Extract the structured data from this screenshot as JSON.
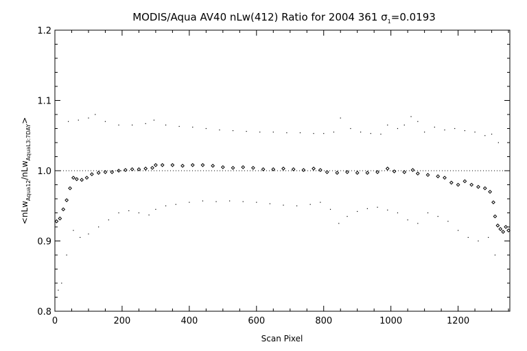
{
  "chart_data": {
    "type": "scatter",
    "title": "MODIS/Aqua AV40 nLw(412) Ratio for 2004 361 σ",
    "title_sub": "1",
    "title_tail": "=0.0193",
    "xlabel": "Scan Pixel",
    "ylabel": {
      "open": "<nLw",
      "sub1": "Aqua12",
      "mid": "/nLw",
      "sub2": "AquaL3:7DAY",
      "close": ">"
    },
    "xlim": [
      0,
      1354
    ],
    "ylim": [
      0.8,
      1.2
    ],
    "x_ticks": [
      "0",
      "200",
      "400",
      "600",
      "800",
      "1000",
      "1200"
    ],
    "y_ticks": [
      "0.8",
      "0.9",
      "1.0",
      "1.1",
      "1.2"
    ],
    "reference_line": {
      "y": 1.0,
      "style": "dotted"
    },
    "grid": false,
    "legend": "none",
    "series": [
      {
        "role": "mean",
        "marker": "diamond",
        "points": [
          [
            5,
            0.928
          ],
          [
            15,
            0.932
          ],
          [
            25,
            0.945
          ],
          [
            35,
            0.958
          ],
          [
            45,
            0.975
          ],
          [
            55,
            0.99
          ],
          [
            65,
            0.988
          ],
          [
            80,
            0.987
          ],
          [
            95,
            0.99
          ],
          [
            110,
            0.995
          ],
          [
            130,
            0.997
          ],
          [
            150,
            0.998
          ],
          [
            170,
            0.998
          ],
          [
            190,
            1.0
          ],
          [
            210,
            1.001
          ],
          [
            230,
            1.002
          ],
          [
            250,
            1.002
          ],
          [
            270,
            1.003
          ],
          [
            290,
            1.004
          ],
          [
            300,
            1.008
          ],
          [
            320,
            1.008
          ],
          [
            350,
            1.008
          ],
          [
            380,
            1.007
          ],
          [
            410,
            1.008
          ],
          [
            440,
            1.008
          ],
          [
            470,
            1.007
          ],
          [
            500,
            1.005
          ],
          [
            530,
            1.004
          ],
          [
            560,
            1.005
          ],
          [
            590,
            1.004
          ],
          [
            620,
            1.002
          ],
          [
            650,
            1.002
          ],
          [
            680,
            1.003
          ],
          [
            710,
            1.002
          ],
          [
            740,
            1.001
          ],
          [
            770,
            1.003
          ],
          [
            790,
            1.001
          ],
          [
            810,
            0.998
          ],
          [
            840,
            0.997
          ],
          [
            870,
            0.998
          ],
          [
            900,
            0.997
          ],
          [
            930,
            0.997
          ],
          [
            960,
            0.998
          ],
          [
            990,
            1.003
          ],
          [
            1010,
            0.999
          ],
          [
            1040,
            0.998
          ],
          [
            1065,
            1.001
          ],
          [
            1080,
            0.996
          ],
          [
            1110,
            0.994
          ],
          [
            1140,
            0.992
          ],
          [
            1160,
            0.99
          ],
          [
            1180,
            0.983
          ],
          [
            1200,
            0.98
          ],
          [
            1220,
            0.985
          ],
          [
            1240,
            0.98
          ],
          [
            1260,
            0.977
          ],
          [
            1280,
            0.975
          ],
          [
            1295,
            0.97
          ],
          [
            1305,
            0.955
          ],
          [
            1310,
            0.935
          ],
          [
            1318,
            0.922
          ],
          [
            1326,
            0.917
          ],
          [
            1334,
            0.913
          ],
          [
            1342,
            0.92
          ],
          [
            1350,
            0.915
          ]
        ]
      },
      {
        "role": "upper",
        "marker": "dot",
        "points": [
          [
            40,
            1.07
          ],
          [
            70,
            1.072
          ],
          [
            100,
            1.075
          ],
          [
            120,
            1.08
          ],
          [
            150,
            1.07
          ],
          [
            190,
            1.065
          ],
          [
            230,
            1.065
          ],
          [
            270,
            1.067
          ],
          [
            295,
            1.072
          ],
          [
            330,
            1.065
          ],
          [
            370,
            1.063
          ],
          [
            410,
            1.062
          ],
          [
            450,
            1.06
          ],
          [
            490,
            1.058
          ],
          [
            530,
            1.057
          ],
          [
            570,
            1.056
          ],
          [
            610,
            1.055
          ],
          [
            650,
            1.055
          ],
          [
            690,
            1.054
          ],
          [
            730,
            1.054
          ],
          [
            770,
            1.053
          ],
          [
            800,
            1.053
          ],
          [
            830,
            1.055
          ],
          [
            850,
            1.075
          ],
          [
            880,
            1.06
          ],
          [
            910,
            1.055
          ],
          [
            940,
            1.053
          ],
          [
            970,
            1.052
          ],
          [
            990,
            1.065
          ],
          [
            1020,
            1.06
          ],
          [
            1040,
            1.065
          ],
          [
            1060,
            1.077
          ],
          [
            1080,
            1.07
          ],
          [
            1100,
            1.055
          ],
          [
            1130,
            1.062
          ],
          [
            1160,
            1.058
          ],
          [
            1190,
            1.06
          ],
          [
            1220,
            1.057
          ],
          [
            1250,
            1.055
          ],
          [
            1280,
            1.05
          ],
          [
            1300,
            1.052
          ],
          [
            1320,
            1.04
          ]
        ]
      },
      {
        "role": "lower",
        "marker": "dot",
        "points": [
          [
            10,
            0.83
          ],
          [
            20,
            0.84
          ],
          [
            35,
            0.88
          ],
          [
            55,
            0.915
          ],
          [
            75,
            0.905
          ],
          [
            100,
            0.91
          ],
          [
            130,
            0.92
          ],
          [
            160,
            0.93
          ],
          [
            190,
            0.94
          ],
          [
            220,
            0.943
          ],
          [
            250,
            0.94
          ],
          [
            280,
            0.937
          ],
          [
            300,
            0.945
          ],
          [
            330,
            0.95
          ],
          [
            360,
            0.952
          ],
          [
            400,
            0.955
          ],
          [
            440,
            0.957
          ],
          [
            480,
            0.956
          ],
          [
            520,
            0.957
          ],
          [
            560,
            0.956
          ],
          [
            600,
            0.955
          ],
          [
            640,
            0.953
          ],
          [
            680,
            0.951
          ],
          [
            720,
            0.95
          ],
          [
            760,
            0.952
          ],
          [
            790,
            0.955
          ],
          [
            820,
            0.945
          ],
          [
            845,
            0.925
          ],
          [
            870,
            0.935
          ],
          [
            900,
            0.942
          ],
          [
            930,
            0.946
          ],
          [
            960,
            0.948
          ],
          [
            990,
            0.944
          ],
          [
            1020,
            0.94
          ],
          [
            1050,
            0.93
          ],
          [
            1080,
            0.925
          ],
          [
            1110,
            0.94
          ],
          [
            1140,
            0.935
          ],
          [
            1170,
            0.928
          ],
          [
            1200,
            0.915
          ],
          [
            1230,
            0.905
          ],
          [
            1260,
            0.9
          ],
          [
            1290,
            0.905
          ],
          [
            1310,
            0.88
          ]
        ]
      }
    ]
  }
}
